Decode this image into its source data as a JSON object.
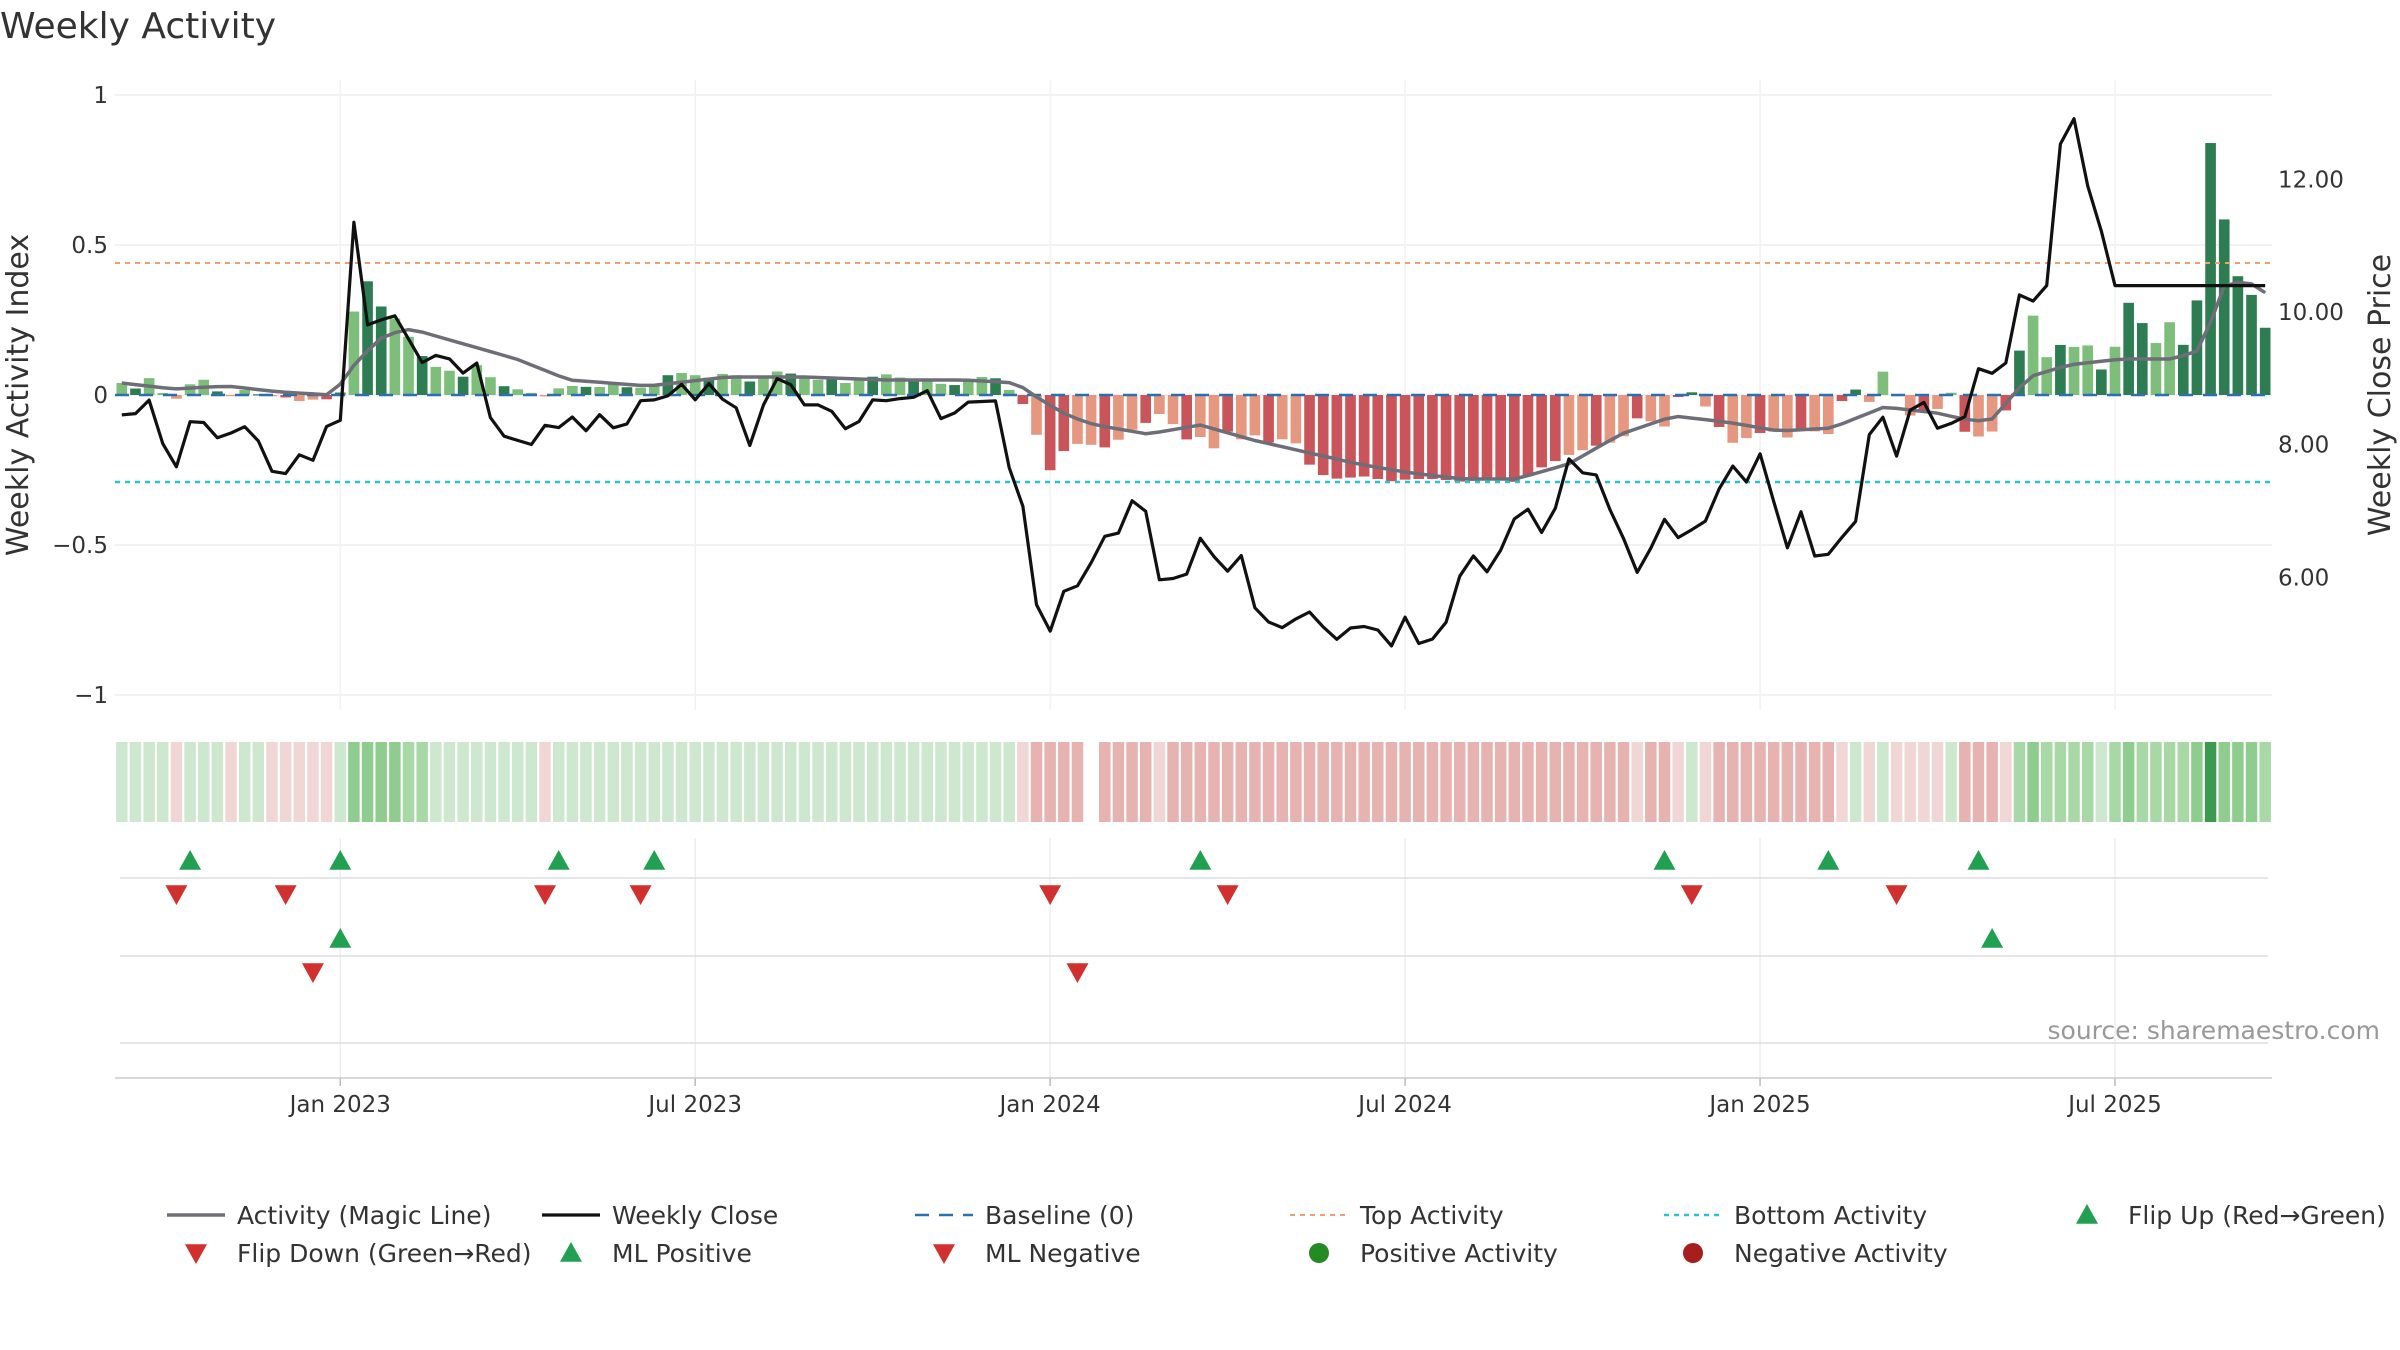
{
  "chart_data": {
    "type": "bar",
    "title": "Weekly Activity",
    "source": "source: sharemaestro.com",
    "ylabel_left": "Weekly Activity Index",
    "ylabel_right": "Weekly Close Price",
    "ylim_left": [
      -1.05,
      1.05
    ],
    "ylim_right": [
      4.0,
      13.5
    ],
    "left_ticks": [
      {
        "v": 1,
        "label": "1"
      },
      {
        "v": 0.5,
        "label": "0.5"
      },
      {
        "v": 0,
        "label": "0"
      },
      {
        "v": -0.5,
        "label": "−0.5"
      },
      {
        "v": -1,
        "label": "−1"
      }
    ],
    "right_ticks": [
      {
        "v": 12,
        "label": "12.00"
      },
      {
        "v": 10,
        "label": "10.00"
      },
      {
        "v": 8,
        "label": "8.00"
      },
      {
        "v": 6,
        "label": "6.00"
      }
    ],
    "x_ticks": [
      {
        "week": 16,
        "label": "Jan 2023"
      },
      {
        "week": 42,
        "label": "Jul 2023"
      },
      {
        "week": 68,
        "label": "Jan 2024"
      },
      {
        "week": 94,
        "label": "Jul 2024"
      },
      {
        "week": 120,
        "label": "Jan 2025"
      },
      {
        "week": 146,
        "label": "Jul 2025"
      }
    ],
    "weeks": 158,
    "top_activity": 0.44,
    "bottom_activity": -0.29,
    "activity_knots": [
      [
        0,
        0.04
      ],
      [
        1,
        0.02
      ],
      [
        2,
        0.06
      ],
      [
        3,
        0.01
      ],
      [
        4,
        -0.02
      ],
      [
        5,
        0.03
      ],
      [
        6,
        0.06
      ],
      [
        7,
        0.02
      ],
      [
        8,
        -0.01
      ],
      [
        9,
        0.02
      ],
      [
        10,
        0.01
      ],
      [
        11,
        -0.01
      ],
      [
        12,
        0.01
      ],
      [
        13,
        -0.03
      ],
      [
        14,
        -0.01
      ],
      [
        15,
        -0.02
      ],
      [
        16,
        -0.01
      ],
      [
        17,
        0.02
      ],
      [
        18,
        0.42
      ],
      [
        19,
        0.36
      ],
      [
        20,
        0.27
      ],
      [
        21,
        0.25
      ],
      [
        22,
        0.18
      ],
      [
        23,
        0.12
      ],
      [
        24,
        0.09
      ],
      [
        25,
        0.08
      ],
      [
        26,
        0.06
      ],
      [
        27,
        0.1
      ],
      [
        28,
        0.06
      ],
      [
        29,
        0.03
      ],
      [
        31,
        0.01
      ],
      [
        32,
        -0.01
      ],
      [
        33,
        0.02
      ],
      [
        34,
        0.03
      ],
      [
        35,
        0.03
      ],
      [
        36,
        0.02
      ],
      [
        37,
        0.04
      ],
      [
        38,
        0.03
      ],
      [
        39,
        0.02
      ],
      [
        40,
        0.03
      ],
      [
        41,
        0.04
      ],
      [
        42,
        0.09
      ],
      [
        43,
        0.06
      ],
      [
        44,
        0.07
      ],
      [
        45,
        0.05
      ],
      [
        46,
        0.08
      ],
      [
        47,
        0.06
      ],
      [
        48,
        0.04
      ],
      [
        49,
        0.07
      ],
      [
        50,
        0.08
      ],
      [
        51,
        0.07
      ],
      [
        52,
        0.06
      ],
      [
        53,
        0.05
      ],
      [
        54,
        0.06
      ],
      [
        55,
        0.04
      ],
      [
        56,
        0.05
      ],
      [
        57,
        0.06
      ],
      [
        58,
        0.07
      ],
      [
        59,
        0.06
      ],
      [
        60,
        0.05
      ],
      [
        61,
        0.05
      ],
      [
        62,
        0.04
      ],
      [
        63,
        0.03
      ],
      [
        64,
        0.04
      ],
      [
        65,
        0.06
      ],
      [
        66,
        0.06
      ],
      [
        67,
        0.05
      ],
      [
        68,
        -0.02
      ],
      [
        69,
        -0.04
      ],
      [
        70,
        -0.21
      ],
      [
        71,
        -0.28
      ],
      [
        72,
        -0.13
      ],
      [
        73,
        -0.18
      ],
      [
        74,
        -0.16
      ],
      [
        75,
        -0.18
      ],
      [
        76,
        -0.14
      ],
      [
        77,
        -0.11
      ],
      [
        78,
        -0.09
      ],
      [
        79,
        -0.06
      ],
      [
        80,
        -0.1
      ],
      [
        81,
        -0.15
      ],
      [
        82,
        -0.14
      ],
      [
        83,
        -0.18
      ],
      [
        84,
        -0.12
      ],
      [
        85,
        -0.15
      ],
      [
        86,
        -0.13
      ],
      [
        87,
        -0.16
      ],
      [
        88,
        -0.15
      ],
      [
        89,
        -0.14
      ],
      [
        90,
        -0.22
      ],
      [
        91,
        -0.26
      ],
      [
        92,
        -0.28
      ],
      [
        95,
        -0.27
      ],
      [
        96,
        -0.29
      ],
      [
        98,
        -0.28
      ],
      [
        100,
        -0.28
      ],
      [
        102,
        -0.29
      ],
      [
        104,
        -0.28
      ],
      [
        106,
        -0.29
      ],
      [
        108,
        -0.24
      ],
      [
        110,
        -0.2
      ],
      [
        112,
        -0.17
      ],
      [
        114,
        -0.15
      ],
      [
        115,
        -0.08
      ],
      [
        116,
        -0.07
      ],
      [
        117,
        -0.14
      ],
      [
        118,
        -0.02
      ],
      [
        119,
        0.02
      ],
      [
        120,
        -0.01
      ],
      [
        121,
        -0.08
      ],
      [
        122,
        -0.14
      ],
      [
        123,
        -0.18
      ],
      [
        124,
        -0.11
      ],
      [
        125,
        -0.14
      ],
      [
        126,
        -0.11
      ],
      [
        127,
        -0.16
      ],
      [
        128,
        -0.1
      ],
      [
        129,
        -0.13
      ],
      [
        130,
        -0.13
      ],
      [
        131,
        0.01
      ],
      [
        132,
        0.02
      ],
      [
        133,
        -0.03
      ],
      [
        134,
        0.09
      ],
      [
        135,
        -0.01
      ],
      [
        136,
        -0.07
      ],
      [
        137,
        -0.05
      ],
      [
        138,
        -0.05
      ],
      [
        139,
        0.02
      ],
      [
        140,
        -0.12
      ],
      [
        141,
        -0.14
      ],
      [
        142,
        -0.13
      ],
      [
        143,
        -0.09
      ],
      [
        144,
        0.07
      ],
      [
        145,
        0.35
      ],
      [
        146,
        0.08
      ],
      [
        147,
        0.21
      ],
      [
        148,
        0.1
      ],
      [
        149,
        0.24
      ],
      [
        150,
        0.08
      ],
      [
        151,
        0.09
      ],
      [
        152,
        0.22
      ],
      [
        153,
        0.37
      ],
      [
        154,
        0.16
      ],
      [
        155,
        0.18
      ],
      [
        156,
        0.27
      ],
      [
        157,
        0.13
      ],
      [
        158,
        0.37
      ],
      [
        159,
        0.95
      ],
      [
        160,
        0.52
      ],
      [
        161,
        0.38
      ],
      [
        162,
        0.33
      ],
      [
        163,
        0.22
      ]
    ],
    "magic_line_knots": [
      [
        0,
        0.04
      ],
      [
        4,
        0.02
      ],
      [
        8,
        0.03
      ],
      [
        12,
        0.01
      ],
      [
        16,
        0.0
      ],
      [
        18,
        0.12
      ],
      [
        20,
        0.2
      ],
      [
        22,
        0.22
      ],
      [
        26,
        0.17
      ],
      [
        30,
        0.12
      ],
      [
        34,
        0.05
      ],
      [
        40,
        0.03
      ],
      [
        46,
        0.06
      ],
      [
        52,
        0.06
      ],
      [
        58,
        0.05
      ],
      [
        64,
        0.05
      ],
      [
        68,
        0.04
      ],
      [
        70,
        -0.02
      ],
      [
        72,
        -0.07
      ],
      [
        74,
        -0.1
      ],
      [
        78,
        -0.13
      ],
      [
        82,
        -0.1
      ],
      [
        86,
        -0.15
      ],
      [
        90,
        -0.19
      ],
      [
        94,
        -0.23
      ],
      [
        98,
        -0.26
      ],
      [
        102,
        -0.28
      ],
      [
        106,
        -0.28
      ],
      [
        110,
        -0.23
      ],
      [
        114,
        -0.13
      ],
      [
        118,
        -0.07
      ],
      [
        122,
        -0.09
      ],
      [
        126,
        -0.12
      ],
      [
        130,
        -0.11
      ],
      [
        134,
        -0.04
      ],
      [
        138,
        -0.06
      ],
      [
        140,
        -0.08
      ],
      [
        142,
        -0.09
      ],
      [
        145,
        0.06
      ],
      [
        148,
        0.1
      ],
      [
        152,
        0.12
      ],
      [
        156,
        0.12
      ],
      [
        158,
        0.15
      ],
      [
        160,
        0.38
      ],
      [
        162,
        0.37
      ],
      [
        163,
        0.34
      ]
    ],
    "close_knots": [
      [
        0,
        8.45
      ],
      [
        1,
        8.45
      ],
      [
        2,
        8.75
      ],
      [
        3,
        8.15
      ],
      [
        4,
        7.45
      ],
      [
        5,
        8.3
      ],
      [
        6,
        8.45
      ],
      [
        7,
        8.15
      ],
      [
        8,
        8.05
      ],
      [
        9,
        8.3
      ],
      [
        10,
        8.25
      ],
      [
        11,
        7.95
      ],
      [
        12,
        7.45
      ],
      [
        13,
        7.6
      ],
      [
        14,
        7.9
      ],
      [
        15,
        7.75
      ],
      [
        16,
        8.3
      ],
      [
        17,
        8.3
      ],
      [
        18,
        11.5
      ],
      [
        19,
        9.8
      ],
      [
        20,
        9.85
      ],
      [
        21,
        10.0
      ],
      [
        22,
        9.8
      ],
      [
        23,
        9.2
      ],
      [
        24,
        9.3
      ],
      [
        25,
        9.4
      ],
      [
        26,
        9.2
      ],
      [
        27,
        9.0
      ],
      [
        28,
        9.35
      ],
      [
        29,
        8.05
      ],
      [
        30,
        8.15
      ],
      [
        31,
        8.05
      ],
      [
        32,
        8.0
      ],
      [
        33,
        8.3
      ],
      [
        34,
        8.25
      ],
      [
        35,
        8.45
      ],
      [
        36,
        8.15
      ],
      [
        37,
        8.5
      ],
      [
        38,
        8.3
      ],
      [
        39,
        8.15
      ],
      [
        40,
        8.6
      ],
      [
        41,
        8.75
      ],
      [
        42,
        8.6
      ],
      [
        43,
        8.85
      ],
      [
        44,
        8.95
      ],
      [
        45,
        8.55
      ],
      [
        46,
        9.05
      ],
      [
        47,
        8.6
      ],
      [
        48,
        8.55
      ],
      [
        49,
        7.95
      ],
      [
        50,
        8.6
      ],
      [
        51,
        9.0
      ],
      [
        52,
        8.95
      ],
      [
        53,
        8.6
      ],
      [
        54,
        8.6
      ],
      [
        55,
        8.6
      ],
      [
        56,
        8.3
      ],
      [
        57,
        8.15
      ],
      [
        58,
        8.6
      ],
      [
        59,
        8.75
      ],
      [
        60,
        8.6
      ],
      [
        61,
        8.75
      ],
      [
        62,
        8.7
      ],
      [
        63,
        8.85
      ],
      [
        64,
        8.3
      ],
      [
        65,
        8.5
      ],
      [
        66,
        8.65
      ],
      [
        67,
        8.65
      ],
      [
        68,
        8.75
      ],
      [
        69,
        7.7
      ],
      [
        70,
        7.4
      ],
      [
        71,
        5.85
      ],
      [
        72,
        4.9
      ],
      [
        73,
        5.75
      ],
      [
        74,
        5.85
      ],
      [
        75,
        5.9
      ],
      [
        76,
        6.5
      ],
      [
        77,
        6.7
      ],
      [
        78,
        6.65
      ],
      [
        79,
        7.35
      ],
      [
        80,
        6.9
      ],
      [
        81,
        5.8
      ],
      [
        82,
        6.0
      ],
      [
        83,
        6.05
      ],
      [
        84,
        6.6
      ],
      [
        85,
        6.35
      ],
      [
        86,
        6.0
      ],
      [
        87,
        6.55
      ],
      [
        88,
        5.6
      ],
      [
        89,
        5.4
      ],
      [
        90,
        5.2
      ],
      [
        91,
        5.3
      ],
      [
        92,
        5.45
      ],
      [
        93,
        5.5
      ],
      [
        94,
        5.1
      ],
      [
        95,
        5.05
      ],
      [
        96,
        5.3
      ],
      [
        97,
        5.25
      ],
      [
        98,
        5.2
      ],
      [
        99,
        4.95
      ],
      [
        100,
        5.4
      ],
      [
        101,
        5.0
      ],
      [
        102,
        5.05
      ],
      [
        103,
        5.2
      ],
      [
        104,
        5.85
      ],
      [
        105,
        6.5
      ],
      [
        106,
        5.95
      ],
      [
        107,
        6.3
      ],
      [
        108,
        6.55
      ],
      [
        109,
        7.2
      ],
      [
        110,
        6.9
      ],
      [
        111,
        6.55
      ],
      [
        112,
        7.25
      ],
      [
        113,
        7.95
      ],
      [
        114,
        7.5
      ],
      [
        115,
        7.55
      ],
      [
        116,
        7.0
      ],
      [
        117,
        6.6
      ],
      [
        118,
        6.05
      ],
      [
        119,
        6.35
      ],
      [
        120,
        6.95
      ],
      [
        121,
        6.6
      ],
      [
        122,
        6.6
      ],
      [
        123,
        6.95
      ],
      [
        124,
        6.7
      ],
      [
        125,
        8.05
      ],
      [
        126,
        7.35
      ],
      [
        127,
        7.5
      ],
      [
        128,
        8.05
      ],
      [
        129,
        6.8
      ],
      [
        130,
        6.35
      ],
      [
        131,
        7.1
      ],
      [
        132,
        6.25
      ],
      [
        133,
        6.35
      ],
      [
        134,
        6.6
      ],
      [
        135,
        6.7
      ],
      [
        136,
        8.05
      ],
      [
        137,
        8.65
      ],
      [
        138,
        7.65
      ],
      [
        139,
        8.25
      ],
      [
        140,
        9.0
      ],
      [
        141,
        8.15
      ],
      [
        142,
        8.35
      ],
      [
        143,
        8.3
      ],
      [
        144,
        8.5
      ],
      [
        145,
        9.45
      ],
      [
        146,
        8.95
      ],
      [
        147,
        9.3
      ],
      [
        148,
        10.4
      ],
      [
        149,
        10.15
      ],
      [
        150,
        10.4
      ],
      [
        151,
        12.5
      ],
      [
        152,
        13.05
      ],
      [
        153,
        12.0
      ],
      [
        154,
        11.5
      ],
      [
        155,
        10.4
      ]
    ],
    "close_x_scale": 0.94,
    "heat_gap_weeks": [
      71
    ],
    "flip_up_weeks": [
      5,
      16,
      32,
      39,
      79,
      113,
      125,
      136
    ],
    "flip_down_weeks": [
      4,
      12,
      31,
      38,
      68,
      81,
      115,
      130
    ],
    "ml_positive_weeks": [
      16,
      137
    ],
    "ml_negative_weeks": [
      14,
      70
    ],
    "colors": {
      "pos_dark": "#2e7d52",
      "pos_light": "#7dbf7a",
      "neg_dark": "#c9555a",
      "neg_light": "#e6977f",
      "magic_line": "#6e6e78",
      "close": "#111111",
      "baseline": "#2a6fb0",
      "top_activity": "#f0a070",
      "bottom_activity": "#27c2d4",
      "flip_up": "#21a052",
      "flip_down": "#d22f2f",
      "pos_dot": "#238b22",
      "neg_dot": "#a81e1e"
    },
    "legend": [
      {
        "key": "magic",
        "label": "Activity (Magic Line)"
      },
      {
        "key": "close",
        "label": "Weekly Close"
      },
      {
        "key": "baseline",
        "label": "Baseline (0)"
      },
      {
        "key": "top",
        "label": "Top Activity"
      },
      {
        "key": "bottom",
        "label": "Bottom Activity"
      },
      {
        "key": "flipup",
        "label": "Flip Up (Red→Green)"
      },
      {
        "key": "flipdown",
        "label": "Flip Down (Green→Red)"
      },
      {
        "key": "mlpos",
        "label": "ML Positive"
      },
      {
        "key": "mlneg",
        "label": "ML Negative"
      },
      {
        "key": "posdot",
        "label": "Positive Activity"
      },
      {
        "key": "negdot",
        "label": "Negative Activity"
      }
    ]
  }
}
